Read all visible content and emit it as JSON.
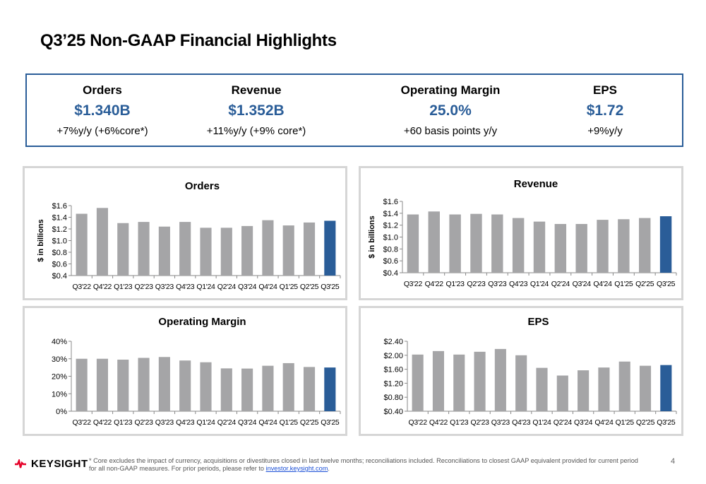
{
  "page": {
    "title": "Q3’25 Non-GAAP Financial Highlights",
    "page_number": "4"
  },
  "kpis": [
    {
      "label": "Orders",
      "value": "$1.340B",
      "sub": "+7%y/y (+6%core*)"
    },
    {
      "label": "Revenue",
      "value": "$1.352B",
      "sub": "+11%y/y (+9% core*)"
    },
    {
      "label": "Operating Margin",
      "value": "25.0%",
      "sub": "+60 basis points y/y"
    },
    {
      "label": "EPS",
      "value": "$1.72",
      "sub": "+9%y/y"
    }
  ],
  "footer": {
    "brand": "KEYSIGHT",
    "note": "* Core excludes the impact of currency, acquisitions or divestitures closed in last twelve months; reconciliations included. Reconciliations to closest GAAP equivalent provided for current period for all non-GAAP measures. For prior periods, please refer to ",
    "link_text": "investor.keysight.com",
    "note_end": "."
  },
  "colors": {
    "bar": "#a5a5a7",
    "highlight": "#2a5d98",
    "accent": "#2a5d98",
    "logo": "#e60028"
  },
  "chart_data": [
    {
      "type": "bar",
      "title": "Orders",
      "ylabel": "$ in billions",
      "categories": [
        "Q3'22",
        "Q4'22",
        "Q1'23",
        "Q2'23",
        "Q3'23",
        "Q4'23",
        "Q1'24",
        "Q2'24",
        "Q3'24",
        "Q4'24",
        "Q1'25",
        "Q2'25",
        "Q3'25"
      ],
      "values": [
        1.46,
        1.56,
        1.3,
        1.32,
        1.24,
        1.32,
        1.22,
        1.22,
        1.25,
        1.35,
        1.26,
        1.31,
        1.34
      ],
      "ylim": [
        0.4,
        1.6
      ],
      "yticks": [
        0.4,
        0.6,
        0.8,
        1.0,
        1.2,
        1.4,
        1.6
      ],
      "ytick_labels": [
        "$0.4",
        "$0.6",
        "$0.8",
        "$1.0",
        "$1.2",
        "$1.4",
        "$1.6"
      ],
      "highlight_last": true
    },
    {
      "type": "bar",
      "title": "Revenue",
      "ylabel": "$ in billions",
      "categories": [
        "Q3'22",
        "Q4'22",
        "Q1'23",
        "Q2'23",
        "Q3'23",
        "Q4'23",
        "Q1'24",
        "Q2'24",
        "Q3'24",
        "Q4'24",
        "Q1'25",
        "Q2'25",
        "Q3'25"
      ],
      "values": [
        1.38,
        1.43,
        1.38,
        1.39,
        1.38,
        1.32,
        1.26,
        1.22,
        1.22,
        1.29,
        1.3,
        1.32,
        1.35
      ],
      "ylim": [
        0.4,
        1.6
      ],
      "yticks": [
        0.4,
        0.6,
        0.8,
        1.0,
        1.2,
        1.4,
        1.6
      ],
      "ytick_labels": [
        "$0.4",
        "$0.6",
        "$0.8",
        "$1.0",
        "$1.2",
        "$1.4",
        "$1.6"
      ],
      "highlight_last": true
    },
    {
      "type": "bar",
      "title": "Operating Margin",
      "ylabel": "",
      "categories": [
        "Q3'22",
        "Q4'22",
        "Q1'23",
        "Q2'23",
        "Q3'23",
        "Q4'23",
        "Q1'24",
        "Q2'24",
        "Q3'24",
        "Q4'24",
        "Q1'25",
        "Q2'25",
        "Q3'25"
      ],
      "values": [
        30,
        30,
        29.5,
        30.5,
        31,
        29,
        28,
        24.5,
        24.4,
        26,
        27.5,
        25.3,
        25.0
      ],
      "ylim": [
        0,
        40
      ],
      "yticks": [
        0,
        10,
        20,
        30,
        40
      ],
      "ytick_labels": [
        "0%",
        "10%",
        "20%",
        "30%",
        "40%"
      ],
      "highlight_last": true
    },
    {
      "type": "bar",
      "title": "EPS",
      "ylabel": "",
      "categories": [
        "Q3'22",
        "Q4'22",
        "Q1'23",
        "Q2'23",
        "Q3'23",
        "Q4'23",
        "Q1'24",
        "Q2'24",
        "Q3'24",
        "Q4'24",
        "Q1'25",
        "Q2'25",
        "Q3'25"
      ],
      "values": [
        2.02,
        2.12,
        2.02,
        2.1,
        2.18,
        2.0,
        1.64,
        1.42,
        1.57,
        1.65,
        1.82,
        1.7,
        1.72
      ],
      "ylim": [
        0.4,
        2.4
      ],
      "yticks": [
        0.4,
        0.8,
        1.2,
        1.6,
        2.0,
        2.4
      ],
      "ytick_labels": [
        "$0.40",
        "$0.80",
        "$1.20",
        "$1.60",
        "$2.00",
        "$2.40"
      ],
      "highlight_last": true
    }
  ]
}
